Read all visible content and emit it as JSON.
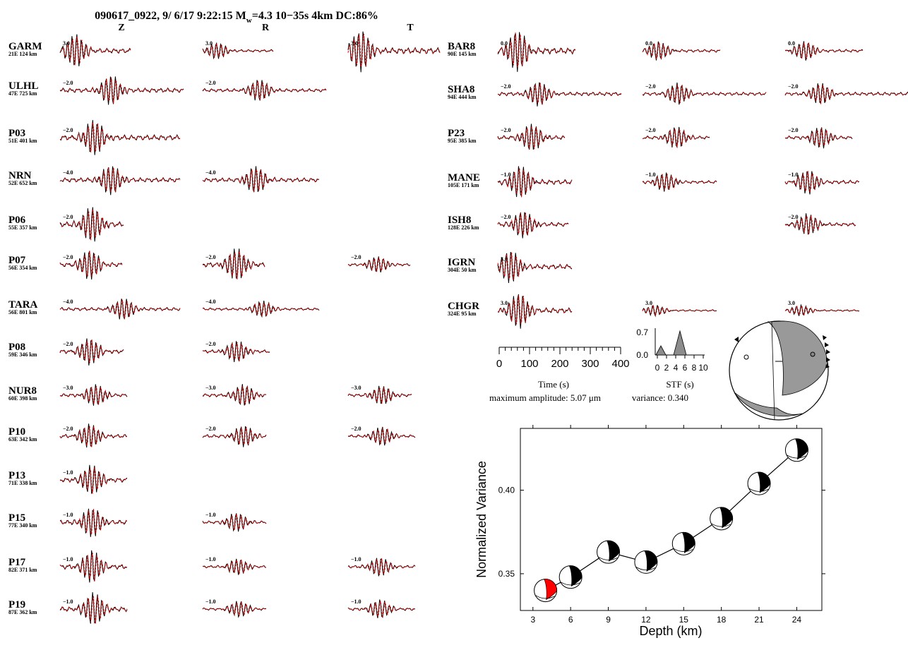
{
  "header": {
    "title_prefix": "090617_0922, 9/ 6/17 9:22:15 M",
    "title_sub": "w",
    "title_suffix": "=4.3 10−35s 4km DC:86%",
    "components": [
      "Z",
      "R",
      "T"
    ]
  },
  "stations": [
    {
      "name": "GARM",
      "info": "21E  124 km",
      "shifts": [
        "3.0",
        "3.0",
        "3.0"
      ]
    },
    {
      "name": "ULHL",
      "info": "47E  725 km",
      "shifts": [
        "−2.0",
        "−2.0",
        null
      ]
    },
    {
      "name": "P03",
      "info": "51E  401 km",
      "shifts": [
        "−2.0",
        null,
        null
      ]
    },
    {
      "name": "NRN",
      "info": "52E  652 km",
      "shifts": [
        "−4.0",
        "−4.0",
        null
      ]
    },
    {
      "name": "P06",
      "info": "55E  357 km",
      "shifts": [
        "−2.0",
        null,
        null
      ]
    },
    {
      "name": "P07",
      "info": "56E  354 km",
      "shifts": [
        "−2.0",
        "−2.0",
        "−2.0"
      ]
    },
    {
      "name": "TARA",
      "info": "56E  801 km",
      "shifts": [
        "−4.0",
        "−4.0",
        null
      ]
    },
    {
      "name": "P08",
      "info": "59E  346 km",
      "shifts": [
        "−2.0",
        "−2.0",
        null
      ]
    },
    {
      "name": "NUR8",
      "info": "60E  398 km",
      "shifts": [
        "−3.0",
        "−3.0",
        "−3.0"
      ]
    },
    {
      "name": "P10",
      "info": "63E  342 km",
      "shifts": [
        "−2.0",
        "−2.0",
        "−2.0"
      ]
    },
    {
      "name": "P13",
      "info": "71E  338 km",
      "shifts": [
        "−1.0",
        null,
        null
      ]
    },
    {
      "name": "P15",
      "info": "77E  340 km",
      "shifts": [
        "−1.0",
        "−1.0",
        null
      ]
    },
    {
      "name": "P17",
      "info": "82E  371 km",
      "shifts": [
        "−1.0",
        "−1.0",
        "−1.0"
      ]
    },
    {
      "name": "P19",
      "info": "87E  362 km",
      "shifts": [
        "−1.0",
        "−1.0",
        "−1.0"
      ]
    },
    {
      "name": "BAR8",
      "info": "90E  145 km",
      "shifts": [
        "0.0",
        "0.0",
        "0.0"
      ]
    },
    {
      "name": "SHA8",
      "info": "94E  444 km",
      "shifts": [
        "−2.0",
        "−2.0",
        "−2.0"
      ]
    },
    {
      "name": "P23",
      "info": "95E  385 km",
      "shifts": [
        "−2.0",
        "−2.0",
        "−2.0"
      ]
    },
    {
      "name": "MANE",
      "info": "105E  171 km",
      "shifts": [
        "−1.0",
        "−1.0",
        "−1.0"
      ]
    },
    {
      "name": "ISH8",
      "info": "128E  226 km",
      "shifts": [
        "−2.0",
        null,
        "−2.0"
      ]
    },
    {
      "name": "IGRN",
      "info": "304E  50 km",
      "shifts": [
        "3.0",
        null,
        null
      ]
    },
    {
      "name": "CHGR",
      "info": "324E  95 km",
      "shifts": [
        "3.0",
        "3.0",
        "3.0"
      ]
    }
  ],
  "colors": {
    "observed": "#000000",
    "synthetic": "#e00000",
    "best_fit": "#ff0000",
    "stf_fill": "#8c8c8c",
    "focal_fill": "#999999"
  },
  "time_axis": {
    "label": "Time (s)",
    "ticks": [
      "0",
      "100",
      "200",
      "300",
      "400"
    ],
    "max": 400
  },
  "amplitude_text": "maximum amplitude:  5.07 μm",
  "stf": {
    "ylabel_ticks": [
      "0.7",
      "0.0"
    ],
    "ticks": [
      "0",
      "2",
      "4",
      "6",
      "8",
      "10"
    ],
    "label": "STF (s)",
    "variance_text": "variance: 0.340"
  },
  "chart_data": {
    "type": "line",
    "xlabel": "Depth (km)",
    "ylabel": "Normalized Variance",
    "x_ticks": [
      "3",
      "6",
      "9",
      "12",
      "15",
      "18",
      "21",
      "24"
    ],
    "y_ticks": [
      "0.35",
      "0.40"
    ],
    "x": [
      4,
      6,
      9,
      12,
      15,
      18,
      21,
      24
    ],
    "values": [
      0.34,
      0.348,
      0.363,
      0.357,
      0.368,
      0.383,
      0.404,
      0.424
    ],
    "best_depth": 4,
    "xlim": [
      2,
      26
    ],
    "ylim": [
      0.328,
      0.437
    ]
  }
}
